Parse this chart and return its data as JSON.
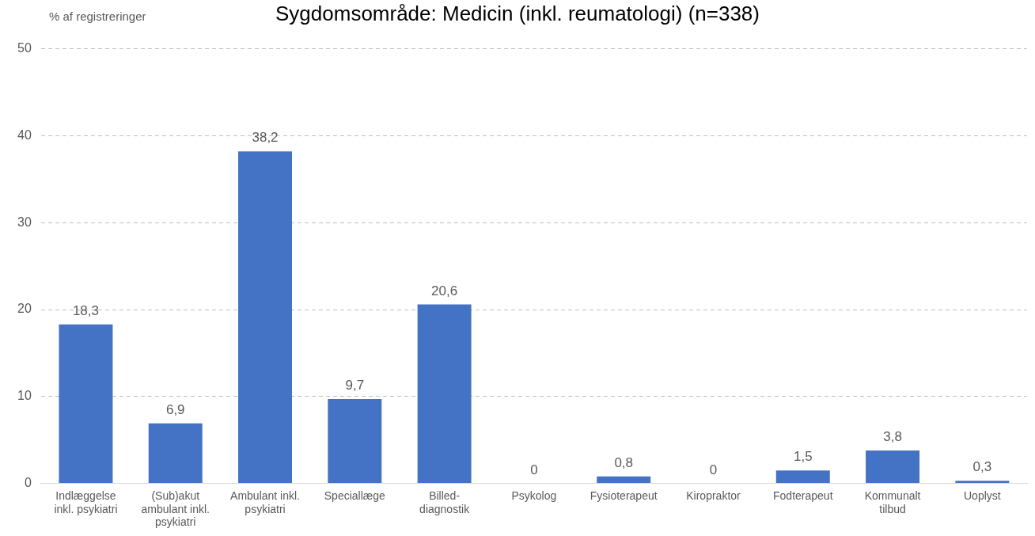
{
  "chart_data": {
    "type": "bar",
    "title": "Sygdomsområde: Medicin (inkl. reumatologi) (n=338)",
    "ylabel": "% af registreringer",
    "categories": [
      "Indlæggelse inkl. psykiatri",
      "(Sub)akut ambulant inkl. psykiatri",
      "Ambulant inkl. psykiatri",
      "Speciallæge",
      "Billed-diagnostik",
      "Psykolog",
      "Fysioterapeut",
      "Kiropraktor",
      "Fodterapeut",
      "Kommunalt tilbud",
      "Uoplyst"
    ],
    "values": [
      18.3,
      6.9,
      38.2,
      9.7,
      20.6,
      0,
      0.8,
      0,
      1.5,
      3.8,
      0.3
    ],
    "value_labels": [
      "18,3",
      "6,9",
      "38,2",
      "9,7",
      "20,6",
      "0",
      "0,8",
      "0",
      "1,5",
      "3,8",
      "0,3"
    ],
    "color": "#4472c4",
    "ylim": [
      0,
      50
    ],
    "yticks": [
      0,
      10,
      20,
      30,
      40,
      50
    ],
    "grid": "y"
  }
}
